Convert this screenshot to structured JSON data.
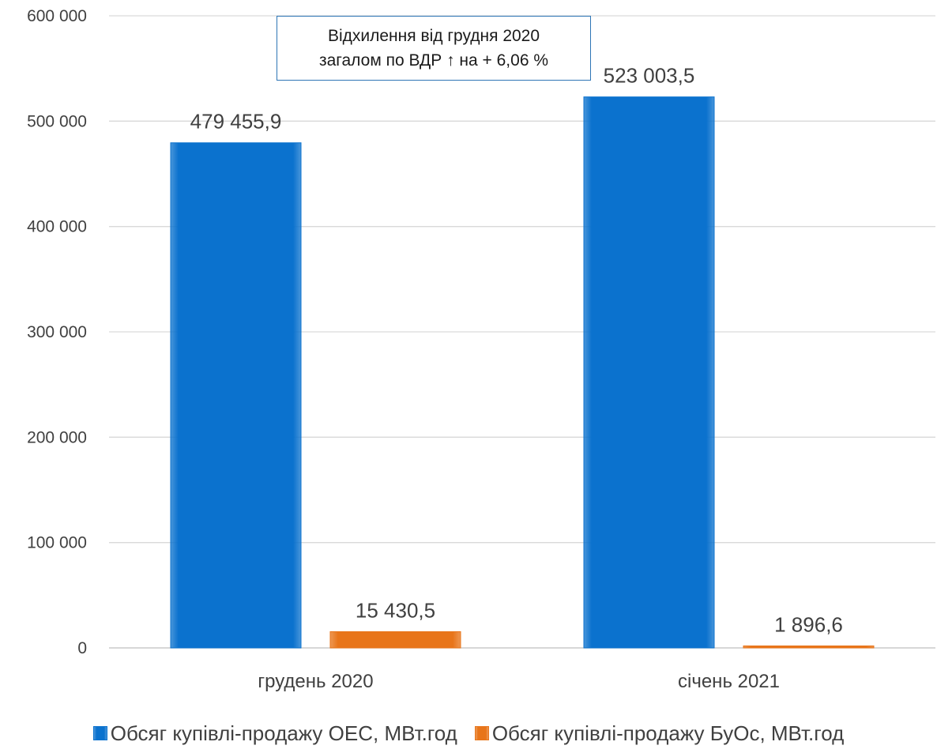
{
  "chart_data": {
    "type": "bar",
    "categories": [
      "грудень 2020",
      "січень 2021"
    ],
    "series": [
      {
        "name": "Обсяг купівлі-продажу ОЕС, МВт.год",
        "values": [
          479455.9,
          523003.5
        ],
        "labels": [
          "479 455,9",
          "523 003,5"
        ],
        "color": "#0B72CE"
      },
      {
        "name": "Обсяг купівлі-продажу БуОс, МВт.год",
        "values": [
          15430.5,
          1896.6
        ],
        "labels": [
          "15 430,5",
          "1 896,6"
        ],
        "color": "#E8751A"
      }
    ],
    "ylim": [
      0,
      600000
    ],
    "yticks": [
      0,
      100000,
      200000,
      300000,
      400000,
      500000,
      600000
    ],
    "ytick_labels": [
      "0",
      "100 000",
      "200 000",
      "300 000",
      "400 000",
      "500 000",
      "600 000"
    ],
    "grid": true,
    "legend_position": "bottom",
    "annotation": {
      "line1": "Відхилення від грудня 2020",
      "line2": "загалом по ВДР ↑ на + 6,06 %"
    }
  }
}
